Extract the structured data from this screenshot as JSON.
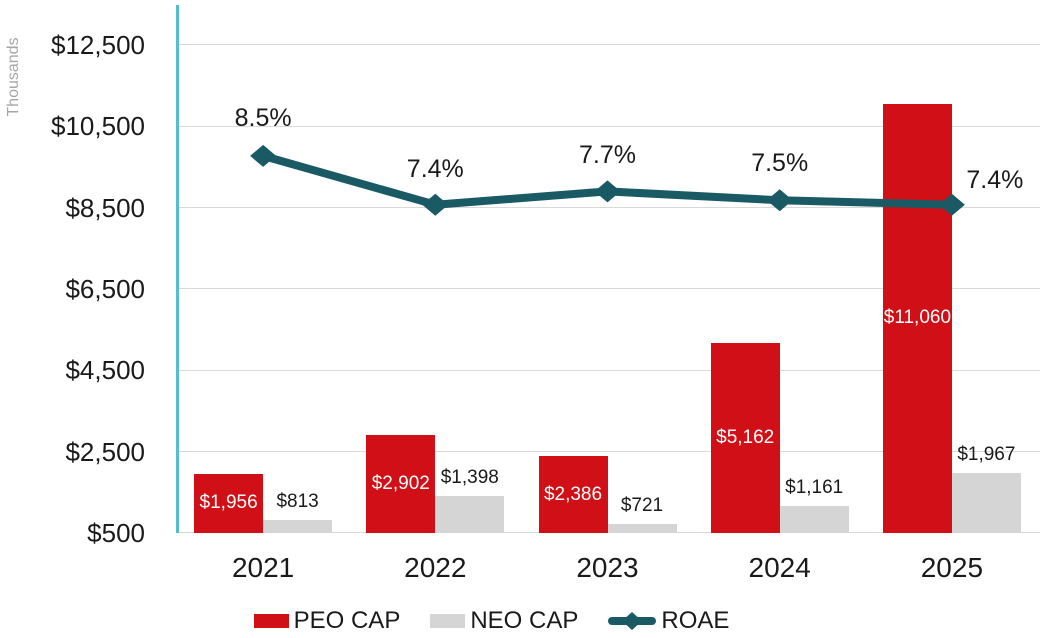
{
  "chart_data": {
    "type": "combo-bar-line",
    "title": "",
    "ylabel": "Thousands",
    "categories": [
      "2021",
      "2022",
      "2023",
      "2024",
      "2025"
    ],
    "series": [
      {
        "name": "PEO CAP",
        "type": "bar",
        "color": "#d01016",
        "label_color": "#ffffff",
        "values": [
          1956,
          2902,
          2386,
          5162,
          11060
        ],
        "labels": [
          "$1,956",
          "$2,902",
          "$2,386",
          "$5,162",
          "$11,060"
        ]
      },
      {
        "name": "NEO CAP",
        "type": "bar",
        "color": "#d5d5d5",
        "label_color": "#1a1a1a",
        "values": [
          813,
          1398,
          721,
          1161,
          1967
        ],
        "labels": [
          "$813",
          "$1,398",
          "$721",
          "$1,161",
          "$1,967"
        ]
      },
      {
        "name": "ROAE",
        "type": "line",
        "color": "#1a5a64",
        "values": [
          8.5,
          7.4,
          7.7,
          7.5,
          7.4
        ],
        "labels": [
          "8.5%",
          "7.4%",
          "7.7%",
          "7.5%",
          "7.4%"
        ]
      }
    ],
    "y_axis": {
      "min": 500,
      "max": 12500,
      "ticks": [
        {
          "label": "$500",
          "value": 500
        },
        {
          "label": "$2,500",
          "value": 2500
        },
        {
          "label": "$4,500",
          "value": 4500
        },
        {
          "label": "$6,500",
          "value": 6500
        },
        {
          "label": "$8,500",
          "value": 8500
        },
        {
          "label": "$10,500",
          "value": 10500
        },
        {
          "label": "$12,500",
          "value": 12500
        }
      ]
    },
    "grid": true,
    "legend_position": "bottom",
    "colors": {
      "grid": "#d9d9d9",
      "axis_line": "#54bfca",
      "axis_text": "#1a1a1a",
      "y_title_text": "#a6a6a6"
    }
  }
}
